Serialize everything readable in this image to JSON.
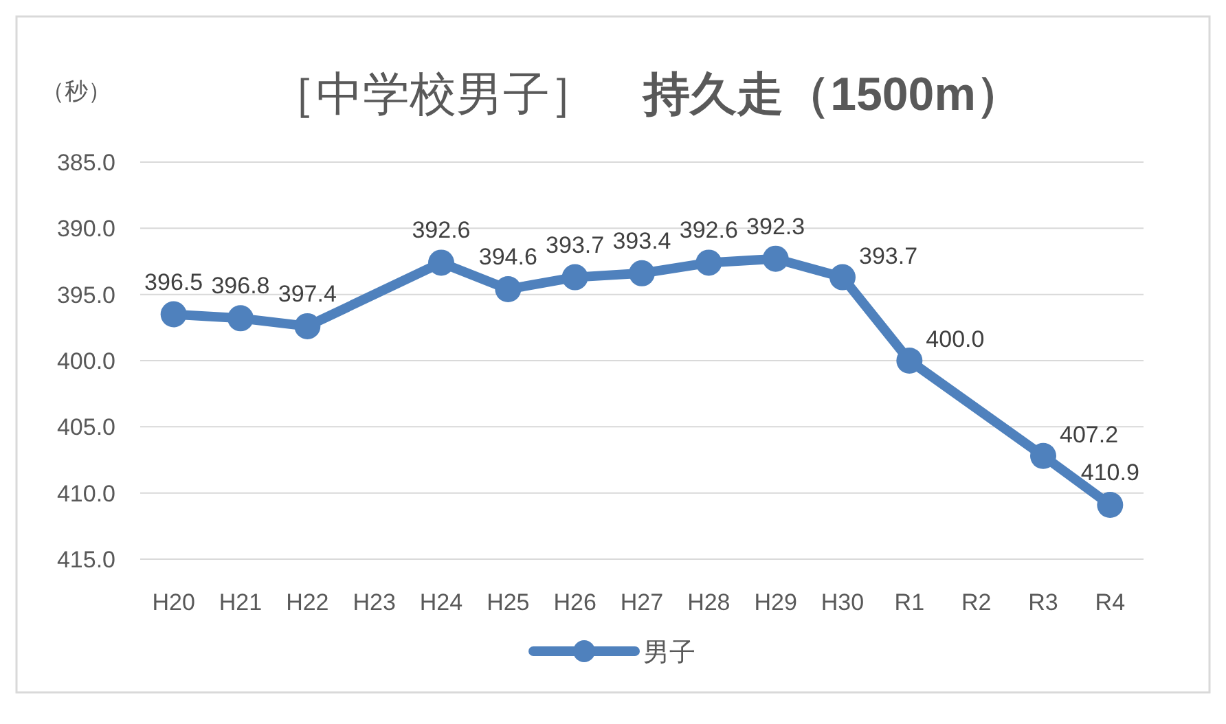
{
  "chart_data": {
    "type": "line",
    "title": "［中学校男子］　**持久走（1500m）**",
    "ylabel": "（秒）",
    "categories": [
      "H20",
      "H21",
      "H22",
      "H23",
      "H24",
      "H25",
      "H26",
      "H27",
      "H28",
      "H29",
      "H30",
      "R1",
      "R2",
      "R3",
      "R4"
    ],
    "series": [
      {
        "name": "男子",
        "color": "#4f81bd",
        "values": [
          396.5,
          396.8,
          397.4,
          null,
          392.6,
          394.6,
          393.7,
          393.4,
          392.6,
          392.3,
          393.7,
          400.0,
          null,
          407.2,
          410.9
        ],
        "value_labels": [
          "396.5",
          "396.8",
          "397.4",
          null,
          "392.6",
          "394.6",
          "393.7",
          "393.4",
          "392.6",
          "392.3",
          "393.7",
          "400.0",
          null,
          "407.2",
          "410.9"
        ]
      }
    ],
    "ylim": [
      415,
      385
    ],
    "yticks": [
      {
        "value": 385,
        "label": "385.0"
      },
      {
        "value": 390,
        "label": "390.0"
      },
      {
        "value": 395,
        "label": "395.0"
      },
      {
        "value": 400,
        "label": "400.0"
      },
      {
        "value": 405,
        "label": "405.0"
      },
      {
        "value": 410,
        "label": "410.0"
      },
      {
        "value": 415,
        "label": "415.0"
      }
    ],
    "grid": "y",
    "legend": "bottom",
    "marker": "circle",
    "line_style": "solid"
  }
}
